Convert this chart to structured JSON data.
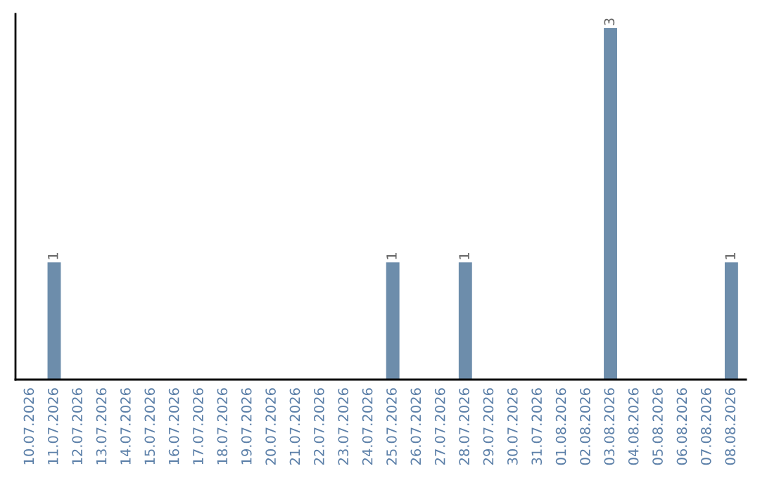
{
  "chart_data": {
    "type": "bar",
    "categories": [
      "10.07.2026",
      "11.07.2026",
      "12.07.2026",
      "13.07.2026",
      "14.07.2026",
      "15.07.2026",
      "16.07.2026",
      "17.07.2026",
      "18.07.2026",
      "19.07.2026",
      "20.07.2026",
      "21.07.2026",
      "22.07.2026",
      "23.07.2026",
      "24.07.2026",
      "25.07.2026",
      "26.07.2026",
      "27.07.2026",
      "28.07.2026",
      "29.07.2026",
      "30.07.2026",
      "31.07.2026",
      "01.08.2026",
      "02.08.2026",
      "03.08.2026",
      "04.08.2026",
      "05.08.2026",
      "06.08.2026",
      "07.08.2026",
      "08.08.2026"
    ],
    "values": [
      0,
      1,
      0,
      0,
      0,
      0,
      0,
      0,
      0,
      0,
      0,
      0,
      0,
      0,
      0,
      1,
      0,
      0,
      1,
      0,
      0,
      0,
      0,
      0,
      3,
      0,
      0,
      0,
      0,
      1
    ],
    "value_labels": [
      null,
      "1",
      null,
      null,
      null,
      null,
      null,
      null,
      null,
      null,
      null,
      null,
      null,
      null,
      null,
      "1",
      null,
      null,
      "1",
      null,
      null,
      null,
      null,
      null,
      "3",
      null,
      null,
      null,
      null,
      "1"
    ],
    "color": "#6d8dab",
    "ylim": [
      0,
      3.12
    ],
    "tick_labels": "x",
    "grid": false
  }
}
